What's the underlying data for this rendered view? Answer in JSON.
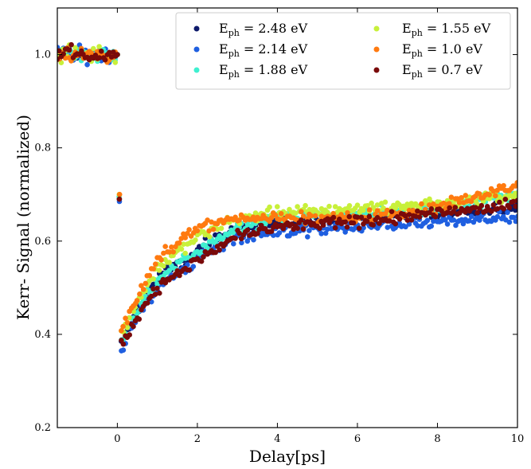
{
  "chart_data": {
    "type": "scatter",
    "title": "",
    "xlabel": "Delay[ps]",
    "ylabel": "Kerr- Signal (normalized)",
    "xlim": [
      -1.5,
      10
    ],
    "ylim": [
      0.2,
      1.1
    ],
    "xticks": [
      0,
      2,
      4,
      6,
      8,
      10
    ],
    "yticks": [
      0.2,
      0.4,
      0.6,
      0.8,
      1.0
    ],
    "xtick_labels": [
      "0",
      "2",
      "4",
      "6",
      "8",
      "10"
    ],
    "ytick_labels": [
      "0.2",
      "0.4",
      "0.6",
      "0.8",
      "1.0"
    ],
    "grid": false,
    "legend_position": "top-right",
    "legend_columns": 2,
    "noise": 0.018,
    "model": {
      "pre_level": 1.0,
      "drop_at": 0.0,
      "min_at": 0.1,
      "min_value": 0.38
    },
    "series": [
      {
        "legend": "E_ph = 2.48 eV",
        "legend_base": "E",
        "legend_sub": "ph",
        "legend_rest": " = 2.48 eV",
        "color": "#0d1a6b",
        "x_step": 0.05,
        "recovery": [
          [
            0.1,
            0.38
          ],
          [
            0.5,
            0.45
          ],
          [
            1.0,
            0.52
          ],
          [
            2.0,
            0.58
          ],
          [
            3.0,
            0.63
          ],
          [
            4.0,
            0.64
          ],
          [
            6.0,
            0.65
          ],
          [
            8.0,
            0.66
          ],
          [
            10.0,
            0.67
          ]
        ]
      },
      {
        "legend": "E_ph = 2.14 eV",
        "legend_base": "E",
        "legend_sub": "ph",
        "legend_rest": " = 2.14 eV",
        "color": "#1f5fe0",
        "x_step": 0.05,
        "recovery": [
          [
            0.1,
            0.37
          ],
          [
            0.5,
            0.44
          ],
          [
            1.0,
            0.5
          ],
          [
            2.0,
            0.56
          ],
          [
            3.0,
            0.61
          ],
          [
            4.0,
            0.62
          ],
          [
            6.0,
            0.63
          ],
          [
            8.0,
            0.64
          ],
          [
            10.0,
            0.65
          ]
        ]
      },
      {
        "legend": "E_ph = 1.88 eV",
        "legend_base": "E",
        "legend_sub": "ph",
        "legend_rest": " = 1.88 eV",
        "color": "#3ff0d0",
        "x_step": 0.05,
        "recovery": [
          [
            0.1,
            0.39
          ],
          [
            0.5,
            0.45
          ],
          [
            1.0,
            0.52
          ],
          [
            2.0,
            0.58
          ],
          [
            3.0,
            0.63
          ],
          [
            4.0,
            0.65
          ],
          [
            6.0,
            0.66
          ],
          [
            8.0,
            0.67
          ],
          [
            10.0,
            0.7
          ]
        ]
      },
      {
        "legend": "E_ph = 1.55 eV",
        "legend_base": "E",
        "legend_sub": "ph",
        "legend_rest": " = 1.55 eV",
        "color": "#c8f03a",
        "x_step": 0.05,
        "recovery": [
          [
            0.1,
            0.4
          ],
          [
            0.5,
            0.47
          ],
          [
            1.0,
            0.54
          ],
          [
            2.0,
            0.61
          ],
          [
            3.0,
            0.65
          ],
          [
            4.0,
            0.66
          ],
          [
            6.0,
            0.67
          ],
          [
            8.0,
            0.68
          ],
          [
            10.0,
            0.7
          ]
        ]
      },
      {
        "legend": "E_ph = 1.0 eV",
        "legend_base": "E",
        "legend_sub": "ph",
        "legend_rest": " = 1.0 eV",
        "color": "#ff7a10",
        "x_step": 0.05,
        "recovery": [
          [
            0.1,
            0.4
          ],
          [
            0.5,
            0.48
          ],
          [
            1.0,
            0.56
          ],
          [
            2.0,
            0.63
          ],
          [
            3.0,
            0.65
          ],
          [
            4.0,
            0.65
          ],
          [
            6.0,
            0.65
          ],
          [
            8.0,
            0.67
          ],
          [
            10.0,
            0.72
          ]
        ]
      },
      {
        "legend": "E_ph = 0.7 eV",
        "legend_base": "E",
        "legend_sub": "ph",
        "legend_rest": " = 0.7 eV",
        "color": "#7a0a0a",
        "x_step": 0.05,
        "recovery": [
          [
            0.1,
            0.38
          ],
          [
            0.5,
            0.44
          ],
          [
            1.0,
            0.5
          ],
          [
            2.0,
            0.56
          ],
          [
            3.0,
            0.61
          ],
          [
            4.0,
            0.63
          ],
          [
            6.0,
            0.64
          ],
          [
            8.0,
            0.66
          ],
          [
            10.0,
            0.68
          ]
        ]
      }
    ]
  }
}
